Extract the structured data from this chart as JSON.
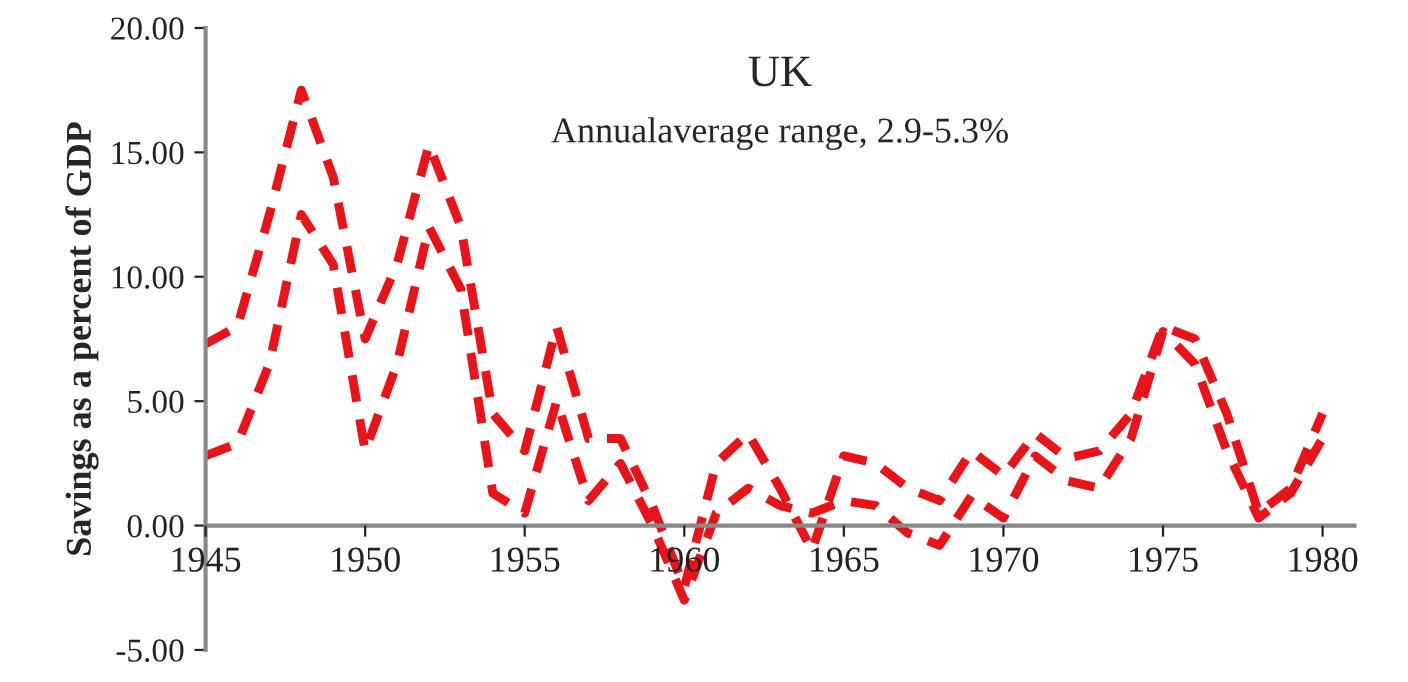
{
  "chart_data": {
    "type": "line",
    "title": "UK",
    "subtitle": "Annualaverage range, 2.9-5.3%",
    "ylabel": "Savings as a percent of GDP",
    "x": [
      1945,
      1946,
      1947,
      1948,
      1949,
      1950,
      1951,
      1952,
      1953,
      1954,
      1955,
      1956,
      1957,
      1958,
      1959,
      1960,
      1961,
      1962,
      1963,
      1964,
      1965,
      1966,
      1967,
      1968,
      1969,
      1970,
      1971,
      1972,
      1973,
      1974,
      1975,
      1976,
      1977,
      1978,
      1979,
      1980
    ],
    "series": [
      {
        "color": "#e8141a",
        "values": [
          7.3,
          8.0,
          12.5,
          17.5,
          14.0,
          7.5,
          10.5,
          15.3,
          12.0,
          4.5,
          3.0,
          8.0,
          3.5,
          3.5,
          0.8,
          -2.5,
          2.5,
          3.7,
          1.5,
          -1.0,
          2.8,
          2.5,
          1.5,
          1.0,
          3.0,
          2.0,
          3.7,
          2.7,
          3.0,
          4.5,
          8.0,
          7.5,
          4.5,
          0.5,
          1.5,
          4.5
        ]
      },
      {
        "color": "#e8141a",
        "values": [
          2.8,
          3.3,
          6.5,
          12.5,
          10.5,
          3.0,
          6.5,
          12.0,
          9.5,
          1.3,
          0.5,
          5.0,
          1.0,
          2.5,
          0.0,
          -3.0,
          0.5,
          1.5,
          0.8,
          0.5,
          1.0,
          0.8,
          -0.3,
          -0.8,
          1.2,
          0.3,
          2.8,
          1.8,
          1.5,
          3.5,
          7.8,
          6.5,
          3.0,
          0.3,
          1.3,
          3.5
        ]
      }
    ],
    "line_style": "dashed",
    "marker": "none",
    "grid": false,
    "legend": false,
    "xlim": [
      1945,
      1981
    ],
    "xticks": [
      1945,
      1950,
      1955,
      1960,
      1965,
      1970,
      1975,
      1980
    ],
    "ylim": [
      -5,
      20
    ],
    "yticks": [
      {
        "value": -5,
        "label": "-5.00"
      },
      {
        "value": 0,
        "label": "0.00"
      },
      {
        "value": 5,
        "label": "5.00"
      },
      {
        "value": 10,
        "label": "10.00"
      },
      {
        "value": 15,
        "label": "15.00"
      },
      {
        "value": 20,
        "label": "20.00"
      }
    ]
  }
}
